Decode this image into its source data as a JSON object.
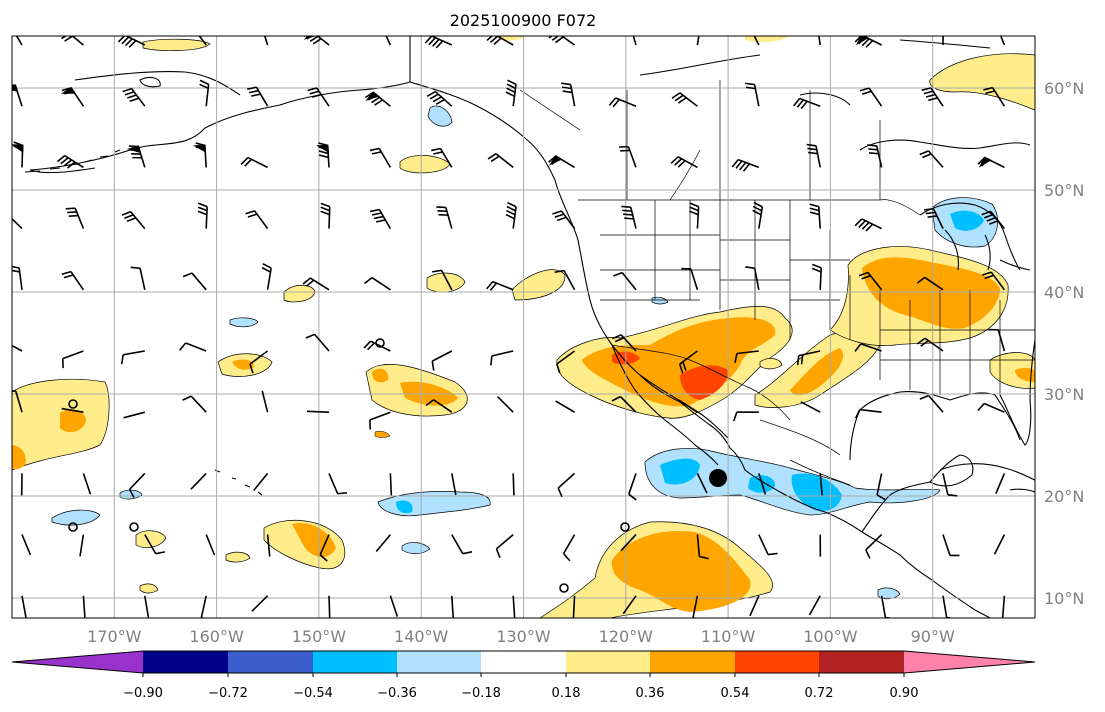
{
  "figure": {
    "title": "2025100900 F072"
  },
  "map": {
    "lon_range": [
      -180,
      -80
    ],
    "lat_range": [
      8,
      65
    ],
    "grid": true,
    "lon_labels": [
      "170°W",
      "160°W",
      "150°W",
      "140°W",
      "130°W",
      "120°W",
      "110°W",
      "100°W",
      "90°W"
    ],
    "lat_labels": [
      "10°N",
      "20°N",
      "30°N",
      "40°N",
      "50°N",
      "60°N"
    ],
    "markers": {
      "dot": {
        "lon": -110,
        "lat": 21.8,
        "color": "#000000"
      }
    }
  },
  "colorbar": {
    "colors": [
      "#9932cc",
      "#00008b",
      "#3a5fcd",
      "#00bfff",
      "#b0e2ff",
      "#ffffff",
      "#ffec8b",
      "#ffa500",
      "#ff4500",
      "#b22222",
      "#ff82ab"
    ],
    "tick_labels": [
      "−0.90",
      "−0.72",
      "−0.54",
      "−0.36",
      "−0.18",
      "0.18",
      "0.36",
      "0.54",
      "0.72",
      "0.90"
    ],
    "extend": "both"
  }
}
